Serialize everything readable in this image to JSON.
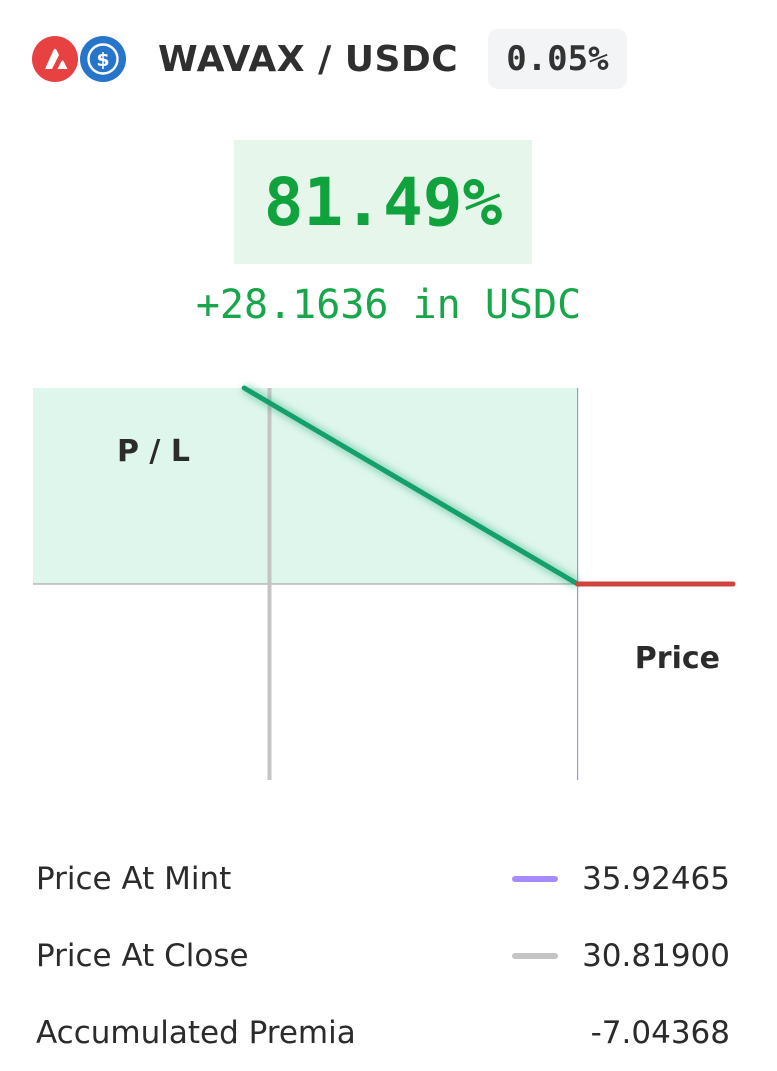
{
  "header": {
    "token_a_icon": "avax-logo-icon",
    "token_b_icon": "usdc-logo-icon",
    "pair": "WAVAX / USDC",
    "fee": "0.05%"
  },
  "position": {
    "return_pct": "81.49%",
    "return_amount": "+28.1636 in USDC"
  },
  "chart_data": {
    "type": "line",
    "xlabel": "Price",
    "ylabel": "P / L",
    "markers": {
      "price_at_mint": 35.92465,
      "price_at_close": 30.819
    },
    "series": [
      {
        "name": "profit",
        "color": "#14a06a",
        "x": [
          30.4,
          35.92465
        ],
        "y": [
          1.0,
          0.0
        ]
      },
      {
        "name": "loss",
        "color": "#d0433f",
        "x": [
          35.92465,
          38.5
        ],
        "y": [
          0.0,
          0.0
        ]
      }
    ],
    "xlim": [
      26.9,
      38.5
    ],
    "ylim": [
      -1.0,
      1.0
    ]
  },
  "legend": [
    {
      "label": "Price At Mint",
      "value": "35.92465",
      "color": "#a78bfa"
    },
    {
      "label": "Price At Close",
      "value": "30.81900",
      "color": "#c4c4c4"
    },
    {
      "label": "Accumulated Premia",
      "value": "-7.04368",
      "color": ""
    }
  ]
}
